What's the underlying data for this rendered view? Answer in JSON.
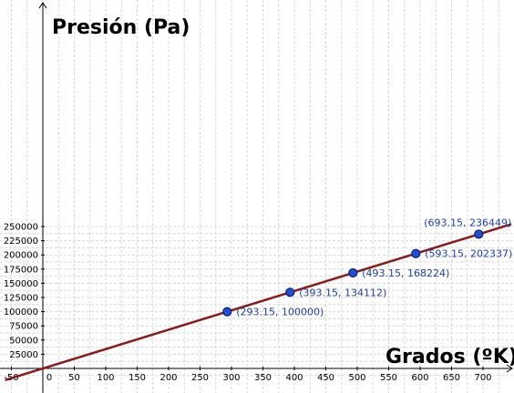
{
  "chart_data": {
    "type": "scatter",
    "xlabel": "Grados (ºK)",
    "ylabel": "Presión (Pa)",
    "xlim": [
      -60,
      745
    ],
    "ylim": [
      -18000,
      260000
    ],
    "x_ticks": [
      -50,
      0,
      50,
      100,
      150,
      200,
      250,
      300,
      350,
      400,
      450,
      500,
      550,
      600,
      650,
      700
    ],
    "y_ticks": [
      25000,
      50000,
      75000,
      100000,
      125000,
      150000,
      175000,
      200000,
      225000,
      250000
    ],
    "x_minor_step": 25,
    "y_minor_step": 12500,
    "grid": true,
    "points": [
      {
        "x": 293.15,
        "y": 100000,
        "label": "(293.15, 100000)"
      },
      {
        "x": 393.15,
        "y": 134112,
        "label": "(393.15, 134112)"
      },
      {
        "x": 493.15,
        "y": 168224,
        "label": "(493.15, 168224)"
      },
      {
        "x": 593.15,
        "y": 202337,
        "label": "(593.15, 202337)"
      },
      {
        "x": 693.15,
        "y": 236449,
        "label": "(693.15, 236449)"
      }
    ],
    "fit_line": {
      "slope": 341.12,
      "intercept": 0
    },
    "colors": {
      "line": "#8b1a1a",
      "point_fill": "#1f4fd8",
      "point_stroke": "#0a1f6b",
      "point_label": "#1f3fa8",
      "grid": "#d8d8d8",
      "axis": "#000000"
    }
  }
}
